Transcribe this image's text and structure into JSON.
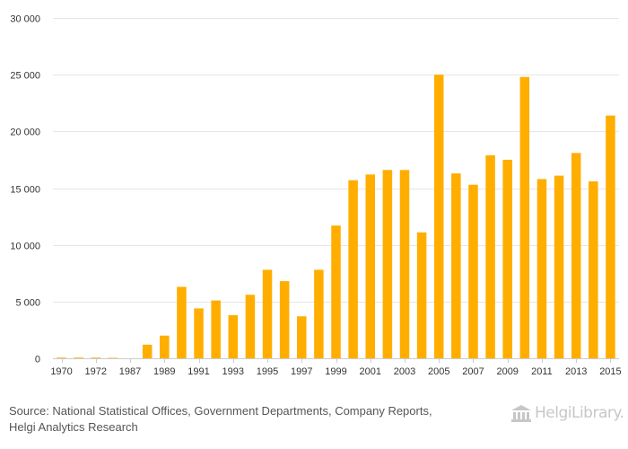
{
  "chart_data": {
    "type": "bar",
    "title": "",
    "xlabel": "",
    "ylabel": "",
    "ylim": [
      0,
      30000
    ],
    "yticks": [
      0,
      5000,
      10000,
      15000,
      20000,
      25000,
      30000
    ],
    "ytick_labels": [
      "0",
      "5 000",
      "10 000",
      "15 000",
      "20 000",
      "25 000",
      "30 000"
    ],
    "categories": [
      "1970",
      "1971",
      "1972",
      "1973",
      "1987",
      "1988",
      "1989",
      "1990",
      "1991",
      "1992",
      "1993",
      "1994",
      "1995",
      "1996",
      "1997",
      "1998",
      "1999",
      "2000",
      "2001",
      "2002",
      "2003",
      "2004",
      "2005",
      "2006",
      "2007",
      "2008",
      "2009",
      "2010",
      "2011",
      "2012",
      "2013",
      "2014",
      "2015"
    ],
    "xtick_labels": [
      "1970",
      "",
      "1972",
      "",
      "1987",
      "",
      "1989",
      "",
      "1991",
      "",
      "1993",
      "",
      "1995",
      "",
      "1997",
      "",
      "1999",
      "",
      "2001",
      "",
      "2003",
      "",
      "2005",
      "",
      "2007",
      "",
      "2009",
      "",
      "2011",
      "",
      "2013",
      "",
      "2015"
    ],
    "values": [
      60,
      60,
      60,
      40,
      0,
      1200,
      2000,
      6300,
      4400,
      5100,
      3800,
      5600,
      7800,
      6800,
      3700,
      7800,
      11700,
      15700,
      16200,
      16600,
      16600,
      11100,
      25000,
      16300,
      15300,
      17900,
      17500,
      24800,
      15800,
      16100,
      18100,
      15600,
      21400
    ],
    "bar_color": "#ffae00"
  },
  "footer": {
    "source_line1": "Source: National Statistical Offices, Government Departments, Company Reports,",
    "source_line2": "Helgi Analytics Research",
    "logo_text": "HelgiLibrary."
  }
}
